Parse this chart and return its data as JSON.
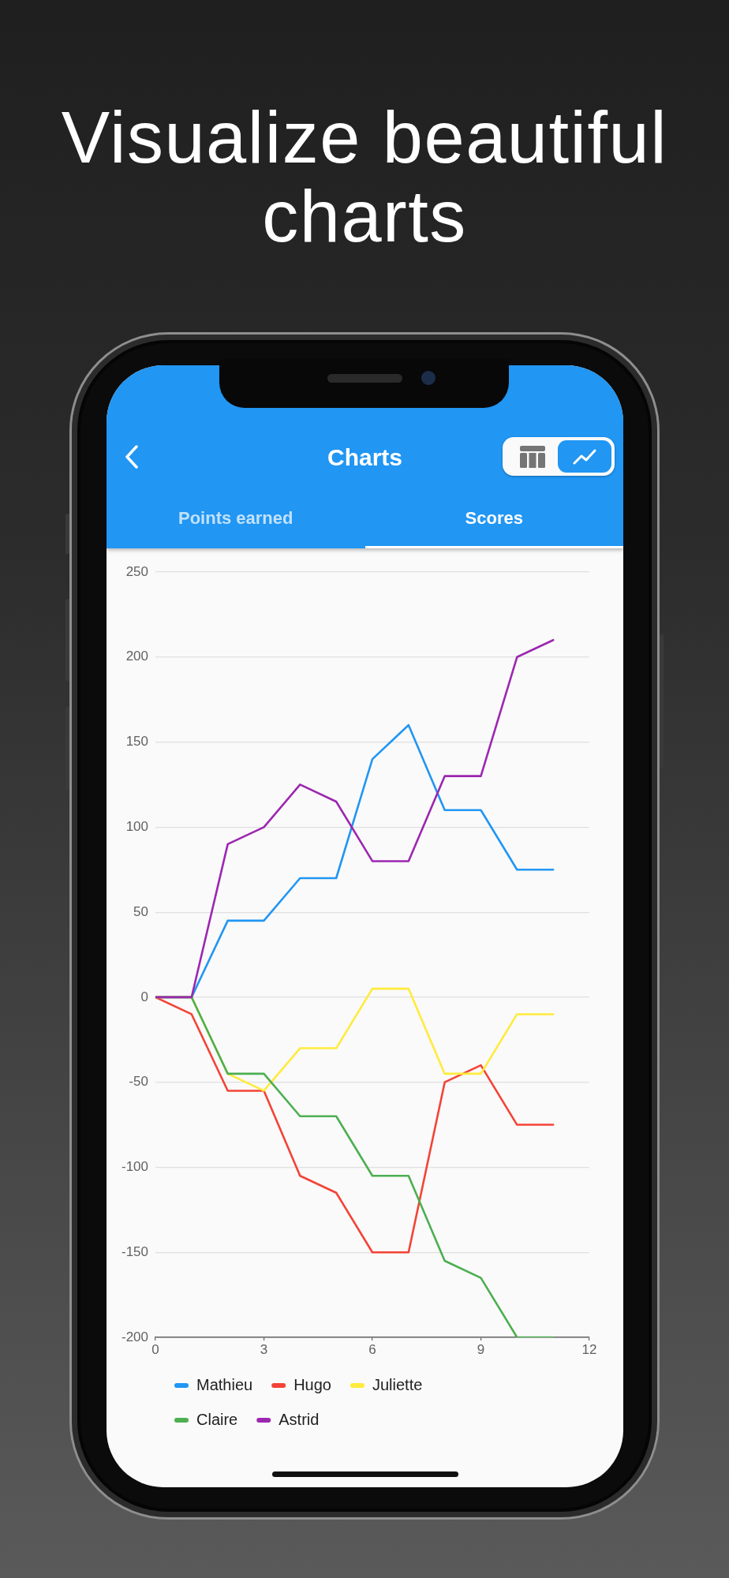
{
  "chart_data": {
    "type": "line",
    "title": "Visualize beautiful charts",
    "subtitle": "Charts",
    "annotations": [
      "Points earned",
      "Scores"
    ],
    "x": [
      0,
      1,
      2,
      3,
      4,
      5,
      6,
      7,
      8,
      9,
      10,
      11
    ],
    "series": [
      {
        "name": "Mathieu",
        "color": "#2196f3",
        "values": [
          0,
          0,
          45,
          45,
          70,
          70,
          140,
          160,
          110,
          110,
          75,
          75
        ]
      },
      {
        "name": "Hugo",
        "color": "#f44336",
        "values": [
          0,
          -10,
          -55,
          -55,
          -105,
          -115,
          -150,
          -150,
          -50,
          -40,
          -75,
          -75
        ]
      },
      {
        "name": "Juliette",
        "color": "#ffeb3b",
        "values": [
          0,
          0,
          -45,
          -55,
          -30,
          -30,
          5,
          5,
          -45,
          -45,
          -10,
          -10
        ]
      },
      {
        "name": "Claire",
        "color": "#4caf50",
        "values": [
          0,
          0,
          -45,
          -45,
          -70,
          -70,
          -105,
          -105,
          -155,
          -165,
          -200,
          -200
        ]
      },
      {
        "name": "Astrid",
        "color": "#9c27b0",
        "values": [
          0,
          0,
          90,
          100,
          125,
          115,
          80,
          80,
          130,
          130,
          200,
          210
        ]
      }
    ],
    "xlim": [
      0,
      12
    ],
    "xticks": [
      0,
      3,
      6,
      9,
      12
    ],
    "ylim": [
      -200,
      250
    ],
    "yticks": [
      -200,
      -150,
      -100,
      -50,
      0,
      50,
      100,
      150,
      200,
      250
    ],
    "grid": "y",
    "legend": "bottom"
  }
}
